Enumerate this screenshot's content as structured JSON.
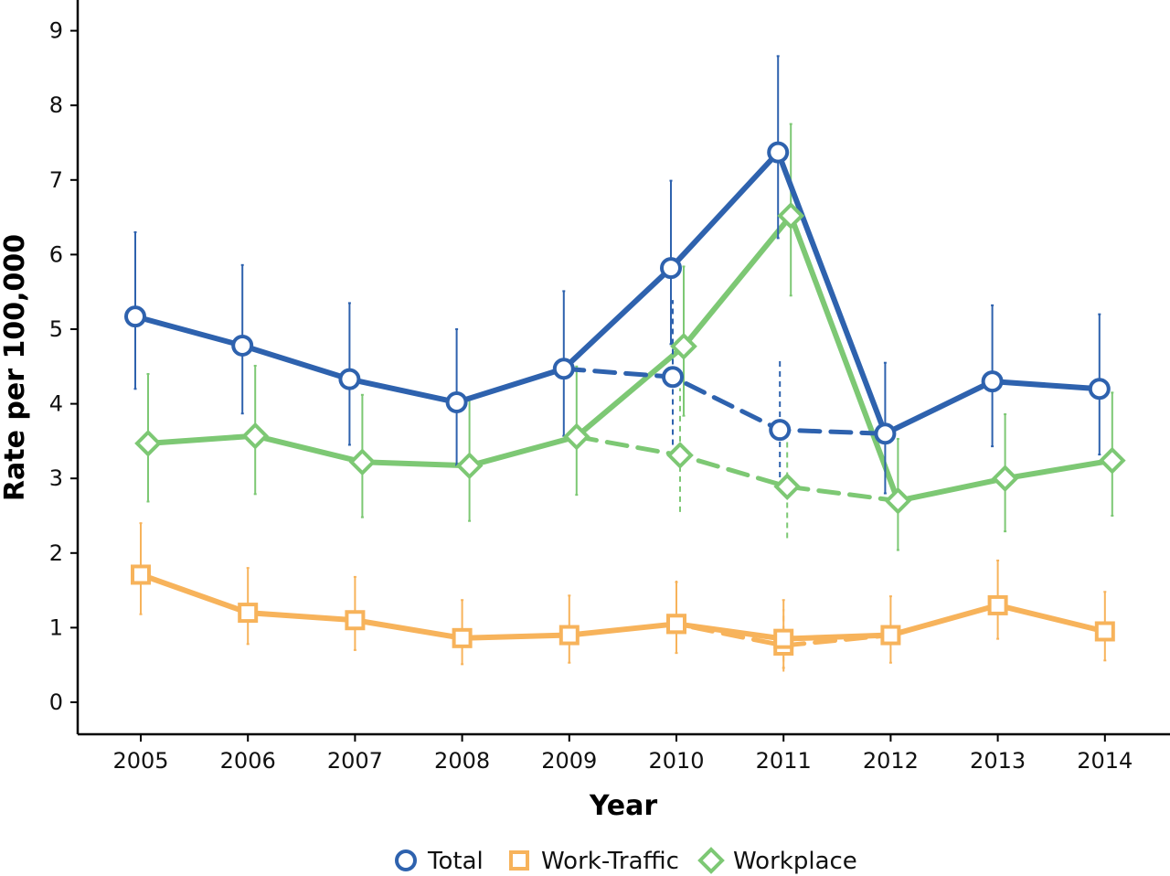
{
  "chart_data": {
    "type": "line",
    "xlabel": "Year",
    "ylabel": "Rate per 100,000",
    "x": [
      2005,
      2006,
      2007,
      2008,
      2009,
      2010,
      2011,
      2012,
      2013,
      2014
    ],
    "x_tick_labels": [
      "2005",
      "2006",
      "2007",
      "2008",
      "2009",
      "2010",
      "2011",
      "2012",
      "2013",
      "2014"
    ],
    "ylim": [
      -0.4,
      9.5
    ],
    "y_ticks": [
      0,
      1,
      2,
      3,
      4,
      5,
      6,
      7,
      8,
      9
    ],
    "y_tick_labels": [
      "0",
      "1",
      "2",
      "3",
      "4",
      "5",
      "6",
      "7",
      "8",
      "9"
    ],
    "grid": false,
    "legend_position": "bottom",
    "series": [
      {
        "name": "Total",
        "color": "#2E62AE",
        "marker": "circle",
        "values": [
          5.17,
          4.78,
          4.33,
          4.02,
          4.47,
          5.82,
          7.37,
          3.6,
          4.3,
          4.2
        ],
        "ci_low": [
          4.2,
          3.87,
          3.45,
          3.18,
          3.57,
          4.8,
          6.22,
          2.8,
          3.43,
          3.32
        ],
        "ci_high": [
          6.3,
          5.86,
          5.35,
          5.0,
          5.51,
          6.99,
          8.66,
          4.55,
          5.32,
          5.2
        ],
        "dashed": {
          "x": [
            2009,
            2010,
            2011,
            2012
          ],
          "values": [
            4.47,
            4.36,
            3.65,
            3.6
          ],
          "ci_low": [
            null,
            3.45,
            2.88,
            null
          ],
          "ci_high": [
            null,
            5.39,
            4.6,
            null
          ]
        }
      },
      {
        "name": "Work-Traffic",
        "color": "#F7B35B",
        "marker": "square",
        "values": [
          1.71,
          1.2,
          1.1,
          0.86,
          0.9,
          1.05,
          0.85,
          0.9,
          1.3,
          0.95
        ],
        "ci_low": [
          1.18,
          0.78,
          0.7,
          0.51,
          0.53,
          0.66,
          0.46,
          0.53,
          0.85,
          0.56
        ],
        "ci_high": [
          2.4,
          1.8,
          1.68,
          1.37,
          1.43,
          1.61,
          1.37,
          1.42,
          1.9,
          1.48
        ],
        "dashed": {
          "x": [
            2009,
            2010,
            2011,
            2012
          ],
          "values": [
            0.9,
            1.05,
            0.76,
            0.9
          ],
          "ci_low": [
            null,
            0.65,
            0.41,
            null
          ],
          "ci_high": [
            null,
            1.63,
            1.25,
            null
          ]
        }
      },
      {
        "name": "Workplace",
        "color": "#7DC874",
        "marker": "diamond",
        "values": [
          3.47,
          3.57,
          3.22,
          3.17,
          3.56,
          4.77,
          6.52,
          2.7,
          3.0,
          3.24
        ],
        "ci_low": [
          2.69,
          2.79,
          2.48,
          2.43,
          2.78,
          3.84,
          5.45,
          2.04,
          2.29,
          2.5
        ],
        "ci_high": [
          4.4,
          4.51,
          4.12,
          4.07,
          4.5,
          5.84,
          7.75,
          3.53,
          3.86,
          4.15
        ],
        "dashed": {
          "x": [
            2009,
            2010,
            2011,
            2012
          ],
          "values": [
            3.56,
            3.31,
            2.89,
            2.7
          ],
          "ci_low": [
            null,
            2.55,
            2.2,
            null
          ],
          "ci_high": [
            null,
            4.21,
            3.71,
            null
          ]
        }
      }
    ]
  }
}
